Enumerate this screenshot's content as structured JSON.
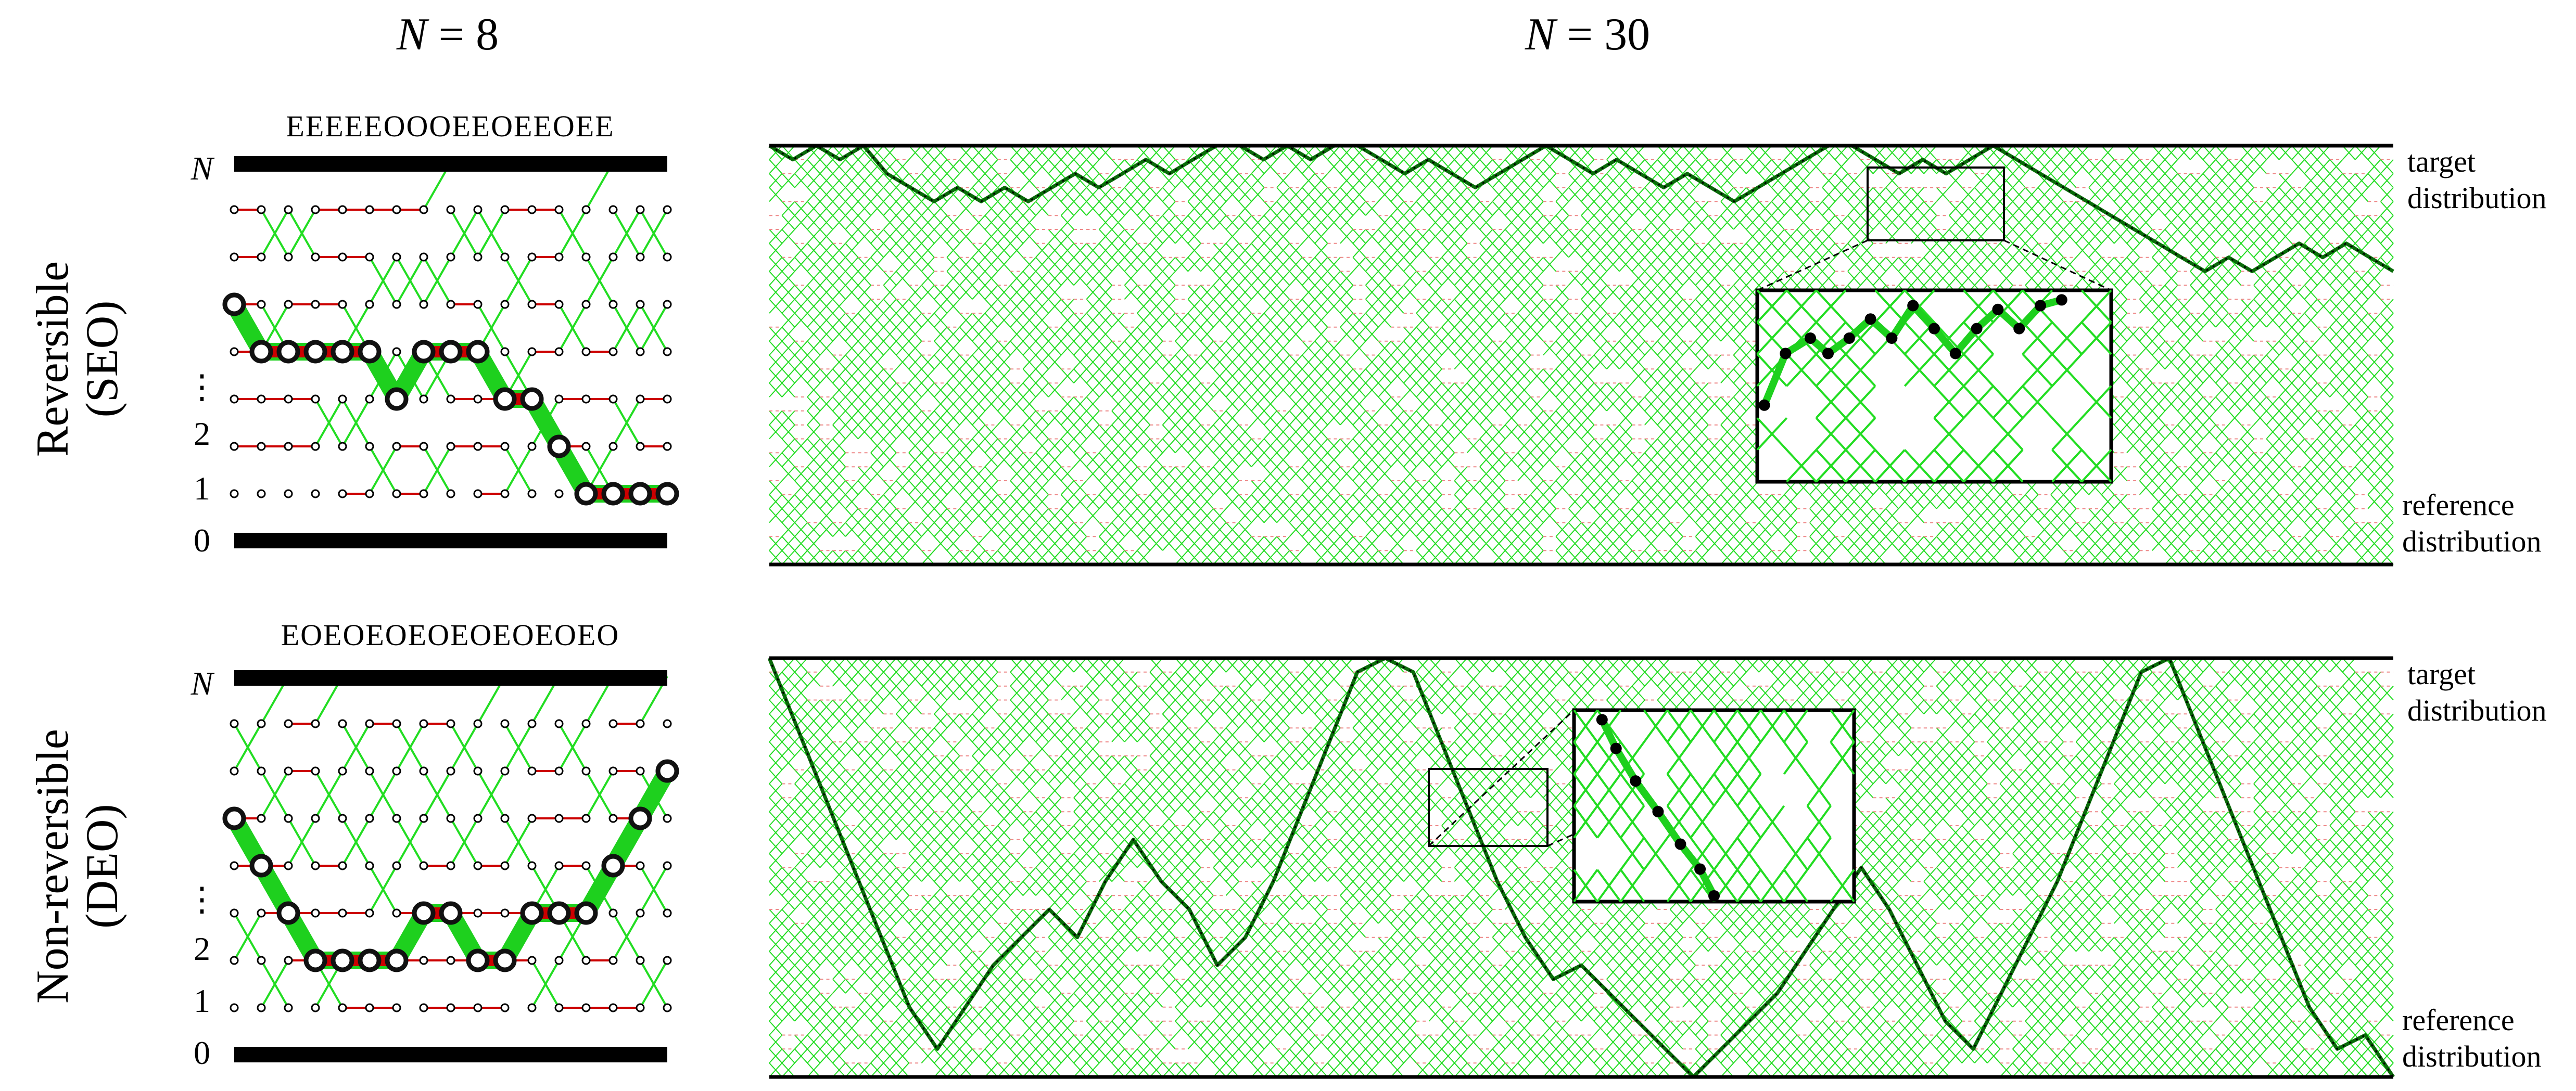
{
  "columns": {
    "left": {
      "lhs": "N",
      "rhs": "8"
    },
    "right": {
      "lhs": "N",
      "rhs": "30"
    }
  },
  "rows": [
    {
      "label_line1": "Reversible",
      "label_line2": "(SEO)",
      "sequence": "EEEEEOOOEEOEEOEE",
      "mode": "reversible",
      "ticks": {
        "top": "N",
        "dots": "⋮",
        "two": "2",
        "one": "1",
        "zero": "0"
      }
    },
    {
      "label_line1": "Non-reversible",
      "label_line2": "(DEO)",
      "sequence": "EOEOEOEOEOEOEOEO",
      "mode": "non-reversible",
      "ticks": {
        "top": "N",
        "dots": "⋮",
        "two": "2",
        "one": "1",
        "zero": "0"
      }
    }
  ],
  "annotations": {
    "target_line1": "target",
    "target_line2": "distribution",
    "reference_line1": "reference",
    "reference_line2": "distribution"
  },
  "colors": {
    "swap": "#22dd22",
    "highlight": "#1ed01e",
    "reject": "#cc0000",
    "node": "#000000"
  }
}
